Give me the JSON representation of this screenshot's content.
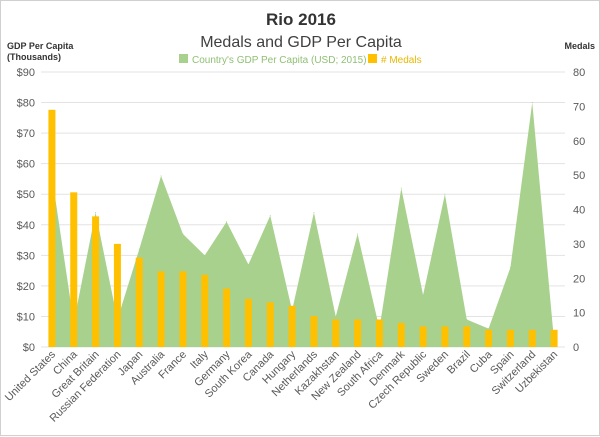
{
  "chart_data": {
    "type": "bar",
    "title": "Rio 2016",
    "subtitle": "Medals and GDP Per Capita",
    "y_left_label_line1": "GDP Per Capita",
    "y_left_label_line2": "(Thousands)",
    "y_right_label": "Medals",
    "categories": [
      "United States",
      "China",
      "Great Britain",
      "Russian Federation",
      "Japan",
      "Australia",
      "France",
      "Italy",
      "Germany",
      "South Korea",
      "Canada",
      "Hungary",
      "Netherlands",
      "Kazakhstan",
      "New Zealand",
      "South Africa",
      "Denmark",
      "Czech Republic",
      "Sweden",
      "Brazil",
      "Cuba",
      "Spain",
      "Switzerland",
      "Uzbekistan"
    ],
    "series": [
      {
        "name": "Country's GDP Per Capita (USD; 2015)",
        "kind": "area",
        "axis": "left",
        "color": "#a9d18e",
        "values": [
          56,
          8,
          44,
          9,
          32,
          56,
          37,
          30,
          41,
          27,
          43,
          12,
          44,
          10,
          37,
          6,
          52,
          17,
          50,
          9,
          6,
          26,
          80,
          2
        ]
      },
      {
        "name": "# Medals",
        "kind": "bar",
        "axis": "right",
        "color": "#ffc000",
        "values": [
          69,
          45,
          38,
          30,
          26,
          22,
          22,
          21,
          17,
          14,
          13,
          12,
          9,
          8,
          8,
          8,
          7,
          6,
          6,
          6,
          5,
          5,
          5,
          5
        ]
      }
    ],
    "y_left": {
      "min": 0,
      "max": 90,
      "step": 10,
      "prefix": "$"
    },
    "y_right": {
      "min": 0,
      "max": 80,
      "step": 10
    },
    "grid": true,
    "legend_position": "top"
  }
}
